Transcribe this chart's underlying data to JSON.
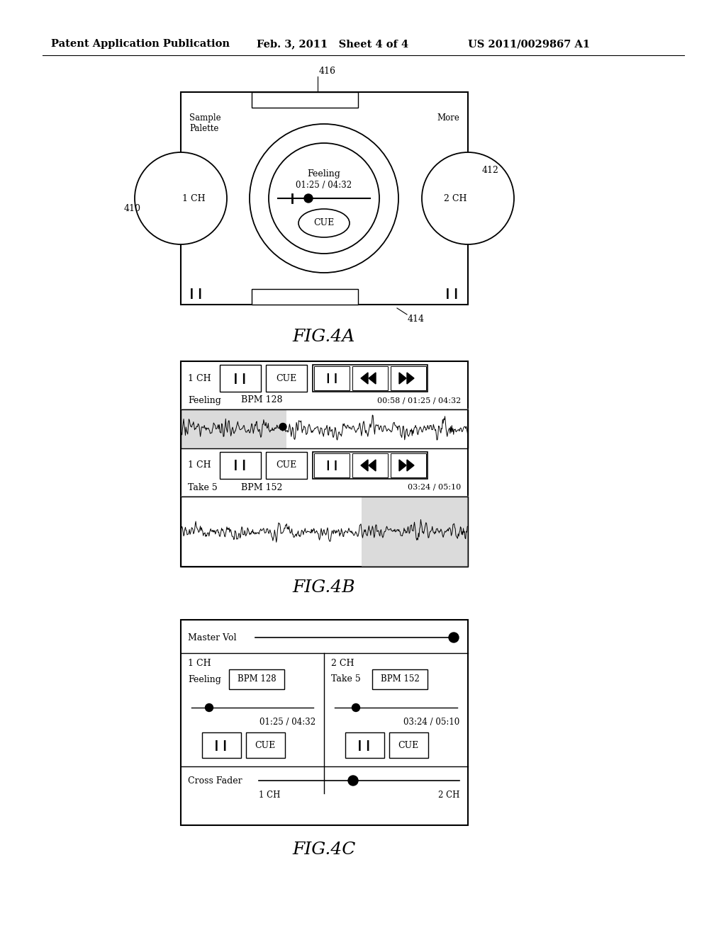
{
  "bg_color": "#ffffff",
  "header_left": "Patent Application Publication",
  "header_mid": "Feb. 3, 2011   Sheet 4 of 4",
  "header_right": "US 2011/0029867 A1",
  "fig4a_label": "FIG.4A",
  "fig4b_label": "FIG.4B",
  "fig4c_label": "FIG.4C"
}
